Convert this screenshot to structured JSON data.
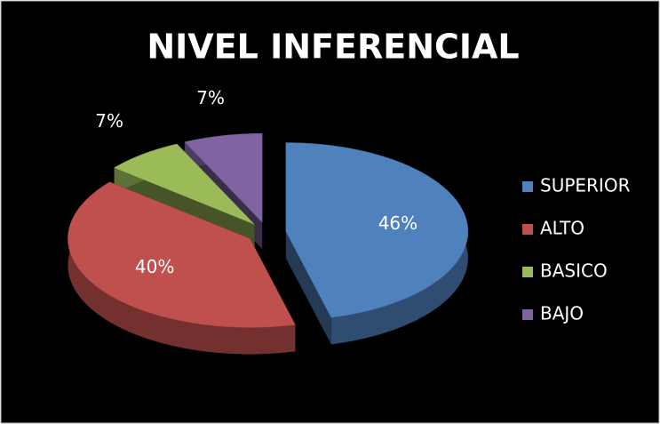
{
  "chart_data": {
    "type": "pie",
    "title": "NIVEL INFERENCIAL",
    "categories": [
      "SUPERIOR",
      "ALTO",
      "BASICO",
      "BAJO"
    ],
    "values": [
      46,
      40,
      7,
      7
    ],
    "value_labels": [
      "46%",
      "40%",
      "7%",
      "7%"
    ],
    "colors": [
      "#4f81bd",
      "#c0504d",
      "#9bbb59",
      "#8064a2"
    ],
    "legend": "right"
  }
}
